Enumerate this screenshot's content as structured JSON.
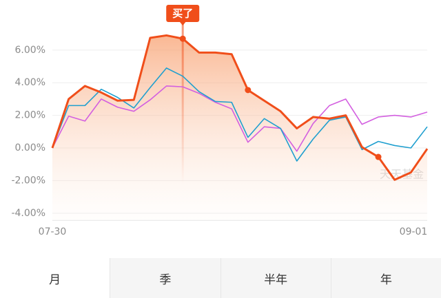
{
  "chart_data": {
    "type": "line",
    "categories": [
      "07-30",
      null,
      null,
      null,
      null,
      null,
      null,
      null,
      null,
      null,
      null,
      null,
      null,
      null,
      null,
      null,
      null,
      null,
      null,
      null,
      null,
      null,
      null,
      "09-01"
    ],
    "series": [
      {
        "color": "#f04e1a",
        "values": [
          0,
          3.0,
          3.8,
          3.4,
          2.9,
          2.95,
          6.75,
          6.9,
          6.7,
          5.85,
          5.85,
          5.75,
          3.55,
          2.9,
          2.25,
          1.2,
          1.9,
          1.8,
          2.0,
          0.05,
          -0.55,
          -1.95,
          -1.5,
          -0.05
        ]
      },
      {
        "color": "#1f9fcf",
        "values": [
          0,
          2.6,
          2.6,
          3.6,
          3.1,
          2.45,
          3.7,
          4.9,
          4.4,
          3.45,
          2.85,
          2.8,
          0.65,
          1.8,
          1.2,
          -0.8,
          0.55,
          1.7,
          1.9,
          -0.1,
          0.4,
          0.15,
          0,
          1.3
        ]
      },
      {
        "color": "#d35fe0",
        "values": [
          0,
          1.95,
          1.65,
          3.0,
          2.5,
          2.25,
          2.95,
          3.8,
          3.75,
          3.35,
          2.8,
          2.4,
          0.35,
          1.3,
          1.2,
          -0.2,
          1.5,
          2.6,
          3.0,
          1.45,
          1.9,
          2.0,
          1.9,
          2.2
        ]
      }
    ],
    "ylim": [
      -4.4,
      7.4
    ],
    "yticks": [
      {
        "value": 6,
        "label": "6.00%"
      },
      {
        "value": 4,
        "label": "4.00%"
      },
      {
        "value": 2,
        "label": "2.00%"
      },
      {
        "value": 0,
        "label": "0.00%"
      },
      {
        "value": -2,
        "label": "-2.00%"
      },
      {
        "value": -4,
        "label": "-4.00%"
      }
    ],
    "grid": true,
    "annotation": {
      "text": "买了",
      "index": 8
    },
    "trade_points": [
      8,
      12,
      20
    ],
    "watermark": "天天基金"
  },
  "tabs": [
    "月",
    "季",
    "半年",
    "年"
  ]
}
